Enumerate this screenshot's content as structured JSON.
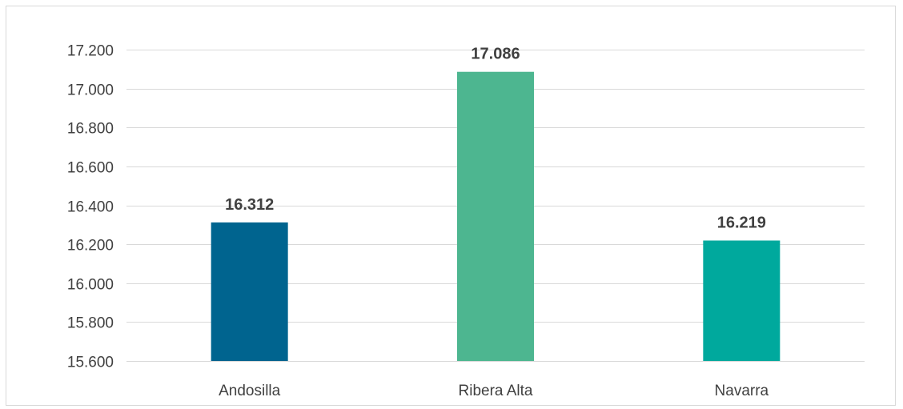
{
  "chart_data": {
    "type": "bar",
    "title": "",
    "xlabel": "",
    "ylabel": "",
    "categories": [
      "Andosilla",
      "Ribera Alta",
      "Navarra"
    ],
    "values": [
      16312,
      17086,
      16219
    ],
    "value_labels": [
      "16.312",
      "17.086",
      "16.219"
    ],
    "bar_colors": [
      "#00648f",
      "#4db690",
      "#00a99d"
    ],
    "ylim": [
      15600,
      17200
    ],
    "yticks": [
      15600,
      15800,
      16000,
      16200,
      16400,
      16600,
      16800,
      17000,
      17200
    ],
    "ytick_labels": [
      "15.600",
      "15.800",
      "16.000",
      "16.200",
      "16.400",
      "16.600",
      "16.800",
      "17.000",
      "17.200"
    ],
    "grid": true,
    "legend": "none"
  }
}
